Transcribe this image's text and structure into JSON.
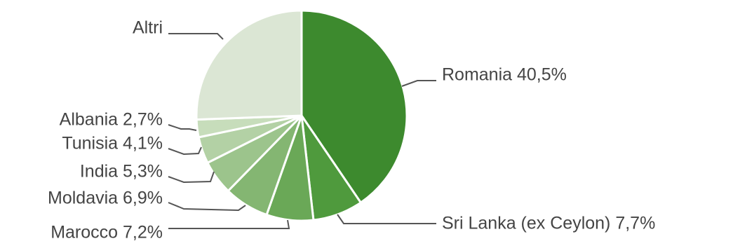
{
  "chart_data": {
    "type": "pie",
    "title": "",
    "start_angle_deg": 0,
    "direction": "clockwise",
    "legend": "none",
    "slices": [
      {
        "label": "Romania",
        "value": 40.5,
        "display": "Romania 40,5%",
        "color": "#3d8a2e"
      },
      {
        "label": "Sri Lanka (ex Ceylon)",
        "value": 7.7,
        "display": "Sri Lanka (ex Ceylon) 7,7%",
        "color": "#4f9a3d"
      },
      {
        "label": "Marocco",
        "value": 7.2,
        "display": "Marocco 7,2%",
        "color": "#6aa857"
      },
      {
        "label": "Moldavia",
        "value": 6.9,
        "display": "Moldavia 6,9%",
        "color": "#84b672"
      },
      {
        "label": "India",
        "value": 5.3,
        "display": "India 5,3%",
        "color": "#9cc48c"
      },
      {
        "label": "Tunisia",
        "value": 4.1,
        "display": "Tunisia 4,1%",
        "color": "#b3d1a5"
      },
      {
        "label": "Albania",
        "value": 2.7,
        "display": "Albania 2,7%",
        "color": "#c7ddbb"
      },
      {
        "label": "Altri",
        "value": 25.6,
        "display": "Altri",
        "color": "#dbe6d4"
      }
    ]
  }
}
